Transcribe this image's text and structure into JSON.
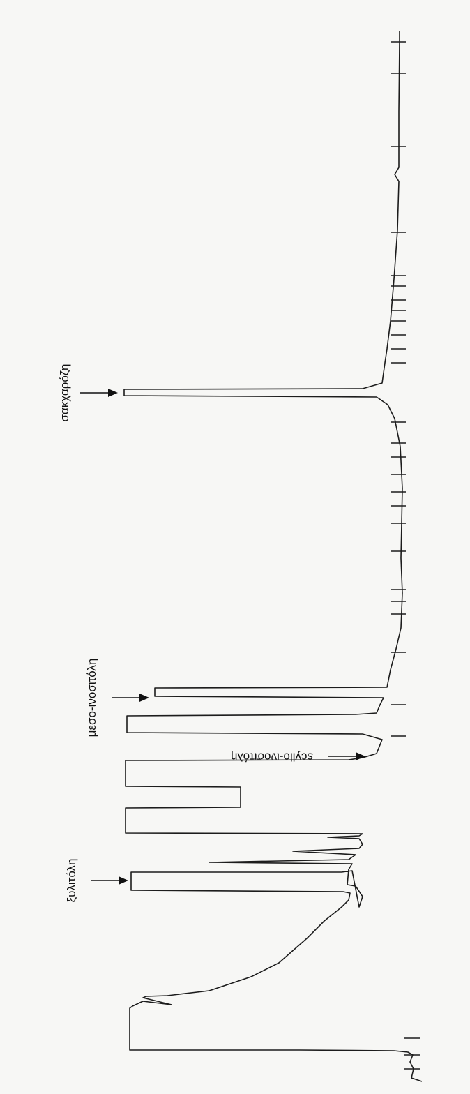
{
  "chart_data": {
    "type": "line",
    "orientation": "rotated",
    "title": "",
    "xlabel": "",
    "ylabel": "",
    "grid": false,
    "legend": "none",
    "trace_color": "#1c1c1c",
    "background_color": "#f7f7f5",
    "annotations": [
      {
        "id": "xylitol",
        "label": "ξυλιτόλη",
        "arrow": true,
        "rotated": true,
        "peak_index": 2
      },
      {
        "id": "meso-inositol",
        "label": "μεσο-ινοσιτόλη",
        "arrow": true,
        "rotated": true,
        "peak_index": 7
      },
      {
        "id": "scyllo-inositol",
        "label": "scyllo-ινοσιτόλη",
        "arrow": true,
        "rotated": false,
        "peak_index": 6
      },
      {
        "id": "sucrose",
        "label": "σακχαρόζη",
        "arrow": true,
        "rotated": true,
        "peak_index": 8
      }
    ]
  }
}
